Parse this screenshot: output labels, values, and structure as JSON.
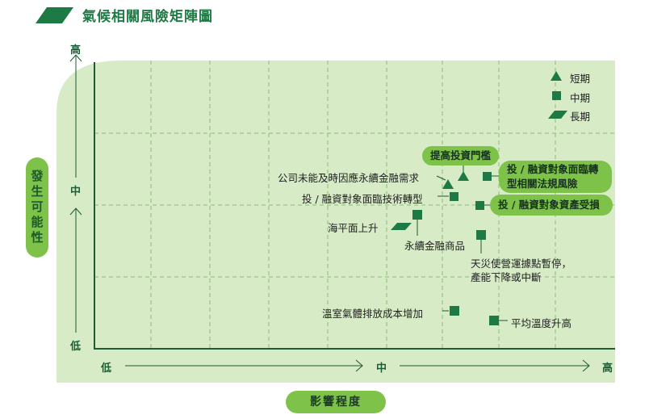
{
  "title": "氣候相關風險矩陣圖",
  "y_axis": {
    "name_chars": [
      "發",
      "生",
      "可",
      "能",
      "性"
    ],
    "high": "高",
    "mid": "中",
    "low": "低"
  },
  "x_axis": {
    "name": "影響程度",
    "low": "低",
    "mid": "中",
    "high": "高"
  },
  "legend": {
    "short": "短期",
    "medium": "中期",
    "long": "長期"
  },
  "risks": {
    "r1": "提高投資門檻",
    "r2": "公司未能及時因應永續金融需求",
    "r3_line1": "投 / 融資對象面臨轉",
    "r3_line2": "型相關法規風險",
    "r4": "投 / 融資對象面臨技術轉型",
    "r5": "投 / 融資對象資產受損",
    "r6": "海平面上升",
    "r7": "永續金融商品",
    "r8_line1": "天災使營運據點暫停，",
    "r8_line2": "產能下降或中斷",
    "r9": "溫室氣體排放成本增加",
    "r10": "平均溫度升高"
  },
  "colors": {
    "green_dark": "#1e7a45",
    "green_light": "#7fc24a",
    "plot_bg": "#d6ebc6"
  }
}
